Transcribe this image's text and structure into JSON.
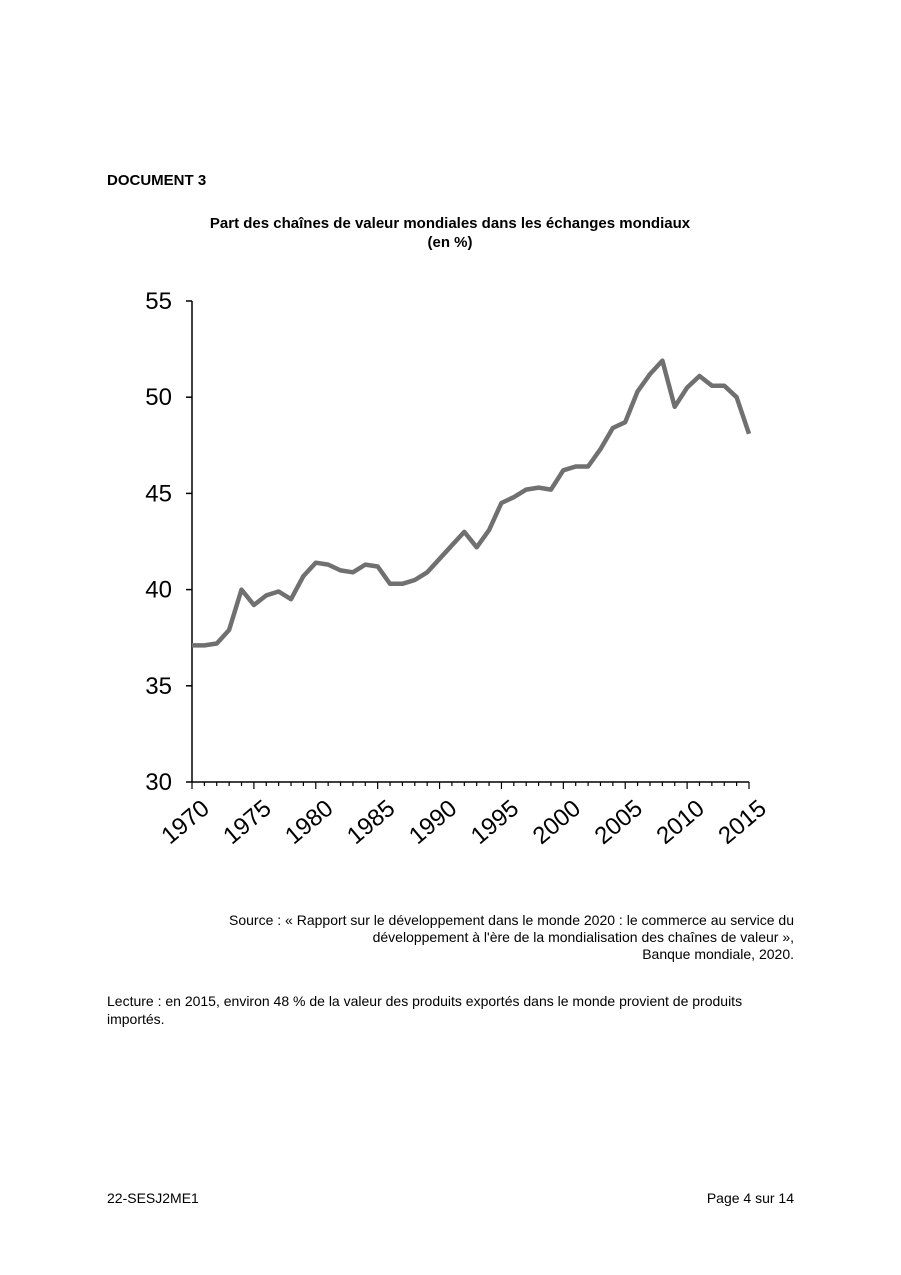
{
  "document": {
    "label": "DOCUMENT 3",
    "source_lines": [
      "Source : « Rapport sur le développement dans le monde 2020 : le commerce au service du",
      "développement à l'ère de la mondialisation des chaînes de valeur »,",
      "Banque mondiale, 2020."
    ],
    "reading": "Lecture : en 2015, environ 48 % de la valeur des produits exportés dans le monde provient de produits importés."
  },
  "footer": {
    "code": "22-SESJ2ME1",
    "page": "Page 4 sur 14"
  },
  "chart_data": {
    "type": "line",
    "title": "Part des chaînes de valeur mondiales dans les échanges mondiaux",
    "subtitle": "(en %)",
    "xlabel": "",
    "ylabel": "",
    "xlim": [
      1970,
      2015
    ],
    "ylim": [
      30,
      55
    ],
    "yticks": [
      30,
      35,
      40,
      45,
      50,
      55
    ],
    "xticks": [
      1970,
      1975,
      1980,
      1985,
      1990,
      1995,
      2000,
      2005,
      2010,
      2015
    ],
    "grid": false,
    "color": "#707070",
    "series": [
      {
        "x": [
          1970,
          1971,
          1972,
          1973,
          1974,
          1975,
          1976,
          1977,
          1978,
          1979,
          1980,
          1981,
          1982,
          1983,
          1984,
          1985,
          1986,
          1987,
          1988,
          1989,
          1990,
          1991,
          1992,
          1993,
          1994,
          1995,
          1996,
          1997,
          1998,
          1999,
          2000,
          2001,
          2002,
          2003,
          2004,
          2005,
          2006,
          2007,
          2008,
          2009,
          2010,
          2011,
          2012,
          2013,
          2014,
          2015
        ],
        "values": [
          37.1,
          37.1,
          37.2,
          37.9,
          40.0,
          39.2,
          39.7,
          39.9,
          39.5,
          40.7,
          41.4,
          41.3,
          41.0,
          40.9,
          41.3,
          41.2,
          40.3,
          40.3,
          40.5,
          40.9,
          41.6,
          42.3,
          43.0,
          42.2,
          43.1,
          44.5,
          44.8,
          45.2,
          45.3,
          45.2,
          46.2,
          46.4,
          46.4,
          47.3,
          48.4,
          48.7,
          50.3,
          51.2,
          51.9,
          49.5,
          50.5,
          51.1,
          50.6,
          50.6,
          50.0,
          48.1
        ]
      }
    ]
  }
}
